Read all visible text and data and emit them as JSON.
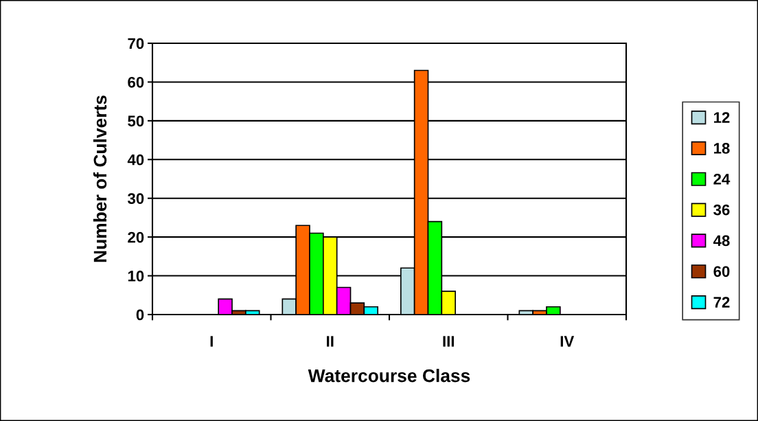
{
  "chart_data": {
    "type": "bar",
    "xlabel": "Watercourse Class",
    "ylabel": "Number of Culverts",
    "categories": [
      "I",
      "II",
      "III",
      "IV"
    ],
    "series": [
      {
        "name": "12",
        "color": "#bbdfe3",
        "values": [
          null,
          4,
          12,
          1
        ]
      },
      {
        "name": "18",
        "color": "#ff6600",
        "values": [
          null,
          23,
          63,
          1
        ]
      },
      {
        "name": "24",
        "color": "#00ff00",
        "values": [
          null,
          21,
          24,
          2
        ]
      },
      {
        "name": "36",
        "color": "#ffff00",
        "values": [
          null,
          20,
          6,
          null
        ]
      },
      {
        "name": "48",
        "color": "#ff00ff",
        "values": [
          4,
          7,
          null,
          null
        ]
      },
      {
        "name": "60",
        "color": "#993300",
        "values": [
          1,
          3,
          null,
          null
        ]
      },
      {
        "name": "72",
        "color": "#00ffff",
        "values": [
          1,
          2,
          null,
          null
        ]
      }
    ],
    "ylim": [
      0,
      70
    ],
    "yticks": [
      0,
      10,
      20,
      30,
      40,
      50,
      60,
      70
    ],
    "grid": "y",
    "legend": "right"
  }
}
